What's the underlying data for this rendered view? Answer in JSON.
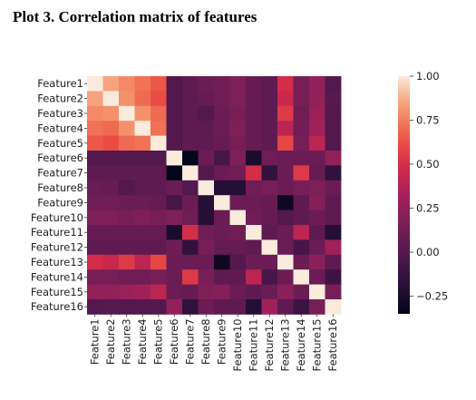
{
  "title": "Plot 3. Correlation matrix of features",
  "chart_data": {
    "type": "heatmap",
    "title": "Plot 3. Correlation matrix of features",
    "row_labels": [
      "Feature1",
      "Feature2",
      "Feature3",
      "Feature4",
      "Feature5",
      "Feature6",
      "Feature7",
      "Feature8",
      "Feature9",
      "Feature10",
      "Feature11",
      "Feature12",
      "Feature13",
      "Feature14",
      "Feature15",
      "Feature16"
    ],
    "col_labels": [
      "Feature1",
      "Feature2",
      "Feature3",
      "Feature4",
      "Feature5",
      "Feature6",
      "Feature7",
      "Feature8",
      "Feature9",
      "Feature10",
      "Feature11",
      "Feature12",
      "Feature13",
      "Feature14",
      "Feature15",
      "Feature16"
    ],
    "colorbar": {
      "min": -0.35,
      "max": 1.0,
      "ticks": [
        1.0,
        0.75,
        0.5,
        0.25,
        0.0,
        -0.25
      ],
      "tick_labels": [
        "1.00",
        "0.75",
        "0.50",
        "0.25",
        "0.00",
        "−0.25"
      ],
      "colormap": "rocket"
    },
    "values": [
      [
        1.0,
        0.85,
        0.78,
        0.72,
        0.65,
        0.0,
        0.05,
        0.1,
        0.12,
        0.18,
        0.08,
        0.05,
        0.5,
        0.15,
        0.25,
        0.0
      ],
      [
        0.85,
        1.0,
        0.8,
        0.7,
        0.62,
        0.0,
        0.05,
        0.08,
        0.12,
        0.18,
        0.08,
        0.05,
        0.45,
        0.15,
        0.25,
        0.02
      ],
      [
        0.78,
        0.8,
        1.0,
        0.8,
        0.7,
        0.0,
        0.05,
        0.0,
        0.1,
        0.15,
        0.08,
        0.05,
        0.55,
        0.12,
        0.28,
        0.0
      ],
      [
        0.72,
        0.7,
        0.8,
        1.0,
        0.72,
        0.0,
        0.05,
        0.05,
        0.1,
        0.18,
        0.08,
        0.05,
        0.4,
        0.12,
        0.3,
        0.0
      ],
      [
        0.65,
        0.62,
        0.7,
        0.72,
        1.0,
        0.0,
        0.05,
        0.05,
        0.08,
        0.15,
        0.08,
        0.05,
        0.6,
        0.15,
        0.4,
        0.0
      ],
      [
        0.0,
        0.0,
        0.0,
        0.0,
        0.0,
        1.0,
        -0.35,
        0.1,
        -0.05,
        0.18,
        -0.25,
        0.12,
        0.1,
        0.1,
        0.1,
        0.25
      ],
      [
        0.05,
        0.05,
        0.05,
        0.05,
        0.05,
        -0.35,
        1.0,
        0.0,
        0.1,
        0.12,
        0.5,
        -0.15,
        0.1,
        0.55,
        0.08,
        -0.15
      ],
      [
        0.1,
        0.08,
        0.0,
        0.05,
        0.05,
        0.1,
        0.0,
        1.0,
        -0.2,
        -0.2,
        0.12,
        0.15,
        0.1,
        0.15,
        0.18,
        0.1
      ],
      [
        0.12,
        0.12,
        0.1,
        0.1,
        0.08,
        -0.05,
        0.1,
        -0.2,
        1.0,
        0.1,
        0.1,
        0.08,
        -0.3,
        0.05,
        0.2,
        0.05
      ],
      [
        0.18,
        0.18,
        0.15,
        0.18,
        0.15,
        0.18,
        0.12,
        -0.2,
        0.1,
        1.0,
        0.12,
        0.08,
        0.0,
        0.05,
        0.1,
        0.05
      ],
      [
        0.08,
        0.08,
        0.08,
        0.08,
        0.08,
        -0.25,
        0.5,
        0.12,
        0.1,
        0.12,
        1.0,
        0.05,
        0.1,
        0.4,
        0.05,
        -0.2
      ],
      [
        0.05,
        0.05,
        0.05,
        0.05,
        0.05,
        0.12,
        -0.15,
        0.15,
        0.08,
        0.08,
        0.05,
        1.0,
        0.1,
        -0.05,
        0.1,
        0.3
      ],
      [
        0.5,
        0.45,
        0.55,
        0.4,
        0.6,
        0.1,
        0.1,
        0.1,
        -0.3,
        0.0,
        0.1,
        0.1,
        1.0,
        0.1,
        0.22,
        0.05
      ],
      [
        0.15,
        0.15,
        0.12,
        0.12,
        0.15,
        0.1,
        0.55,
        0.15,
        0.05,
        0.05,
        0.4,
        -0.05,
        0.1,
        1.0,
        0.1,
        -0.1
      ],
      [
        0.25,
        0.25,
        0.28,
        0.3,
        0.4,
        0.1,
        0.08,
        0.18,
        0.2,
        0.1,
        0.05,
        0.1,
        0.22,
        0.1,
        1.0,
        0.15
      ],
      [
        0.0,
        0.02,
        0.0,
        0.0,
        0.0,
        0.25,
        -0.15,
        0.1,
        0.05,
        0.05,
        -0.2,
        0.3,
        0.05,
        -0.1,
        0.15,
        1.0
      ]
    ]
  }
}
